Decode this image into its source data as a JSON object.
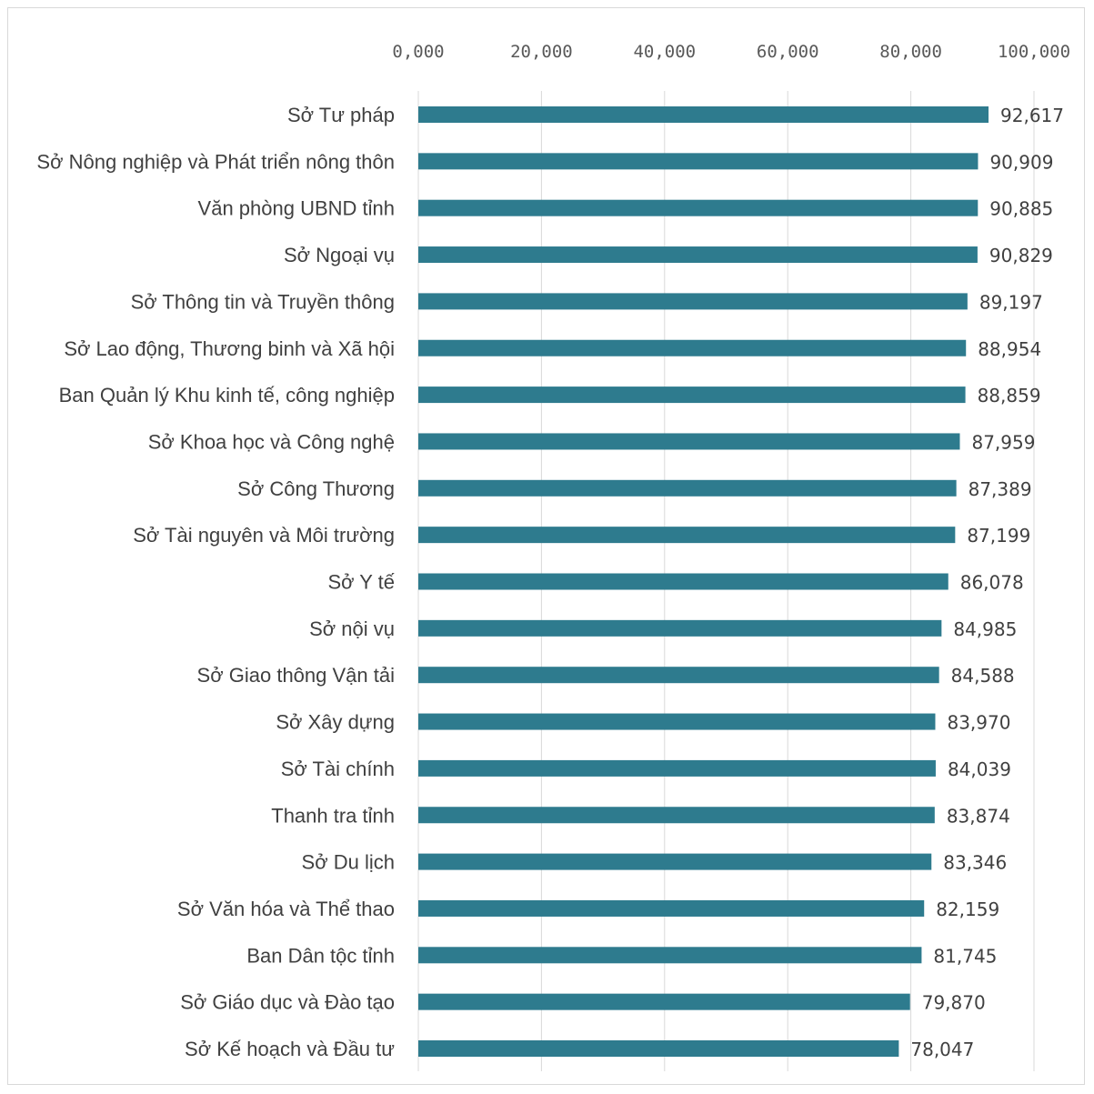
{
  "chart_data": {
    "type": "bar",
    "orientation": "horizontal",
    "title": "",
    "xlabel": "",
    "ylabel": "",
    "xlim": [
      0,
      100
    ],
    "x_tick_labels": [
      "0,000",
      "20,000",
      "40,000",
      "60,000",
      "80,000",
      "100,000"
    ],
    "x_ticks": [
      0,
      20,
      40,
      60,
      80,
      100
    ],
    "axis_position": "top",
    "grid": true,
    "legend": "none",
    "bar_color": "#2e7b8e",
    "categories": [
      "Sở Tư pháp",
      "Sở Nông nghiệp và Phát triển nông thôn",
      "Văn phòng UBND tỉnh",
      "Sở Ngoại vụ",
      "Sở Thông tin và Truyền thông",
      "Sở Lao động, Thương binh và Xã hội",
      "Ban Quản lý Khu kinh tế, công nghiệp",
      "Sở Khoa học và Công nghệ",
      "Sở Công Thương",
      "Sở Tài nguyên và Môi trường",
      "Sở Y tế",
      "Sở nội vụ",
      "Sở Giao thông Vận tải",
      "Sở Xây dựng",
      "Sở Tài chính",
      "Thanh tra tỉnh",
      "Sở Du lịch",
      "Sở Văn hóa và Thể thao",
      "Ban Dân tộc tỉnh",
      "Sở Giáo dục và Đào tạo",
      "Sở Kế hoạch và Đầu tư"
    ],
    "values": [
      92.617,
      90.909,
      90.885,
      90.829,
      89.197,
      88.954,
      88.859,
      87.959,
      87.389,
      87.199,
      86.078,
      84.985,
      84.588,
      83.97,
      84.039,
      83.874,
      83.346,
      82.159,
      81.745,
      79.87,
      78.047
    ],
    "value_labels": [
      "92,617",
      "90,909",
      "90,885",
      "90,829",
      "89,197",
      "88,954",
      "88,859",
      "87,959",
      "87,389",
      "87,199",
      "86,078",
      "84,985",
      "84,588",
      "83,970",
      "84,039",
      "83,874",
      "83,346",
      "82,159",
      "81,745",
      "79,870",
      "78,047"
    ]
  }
}
